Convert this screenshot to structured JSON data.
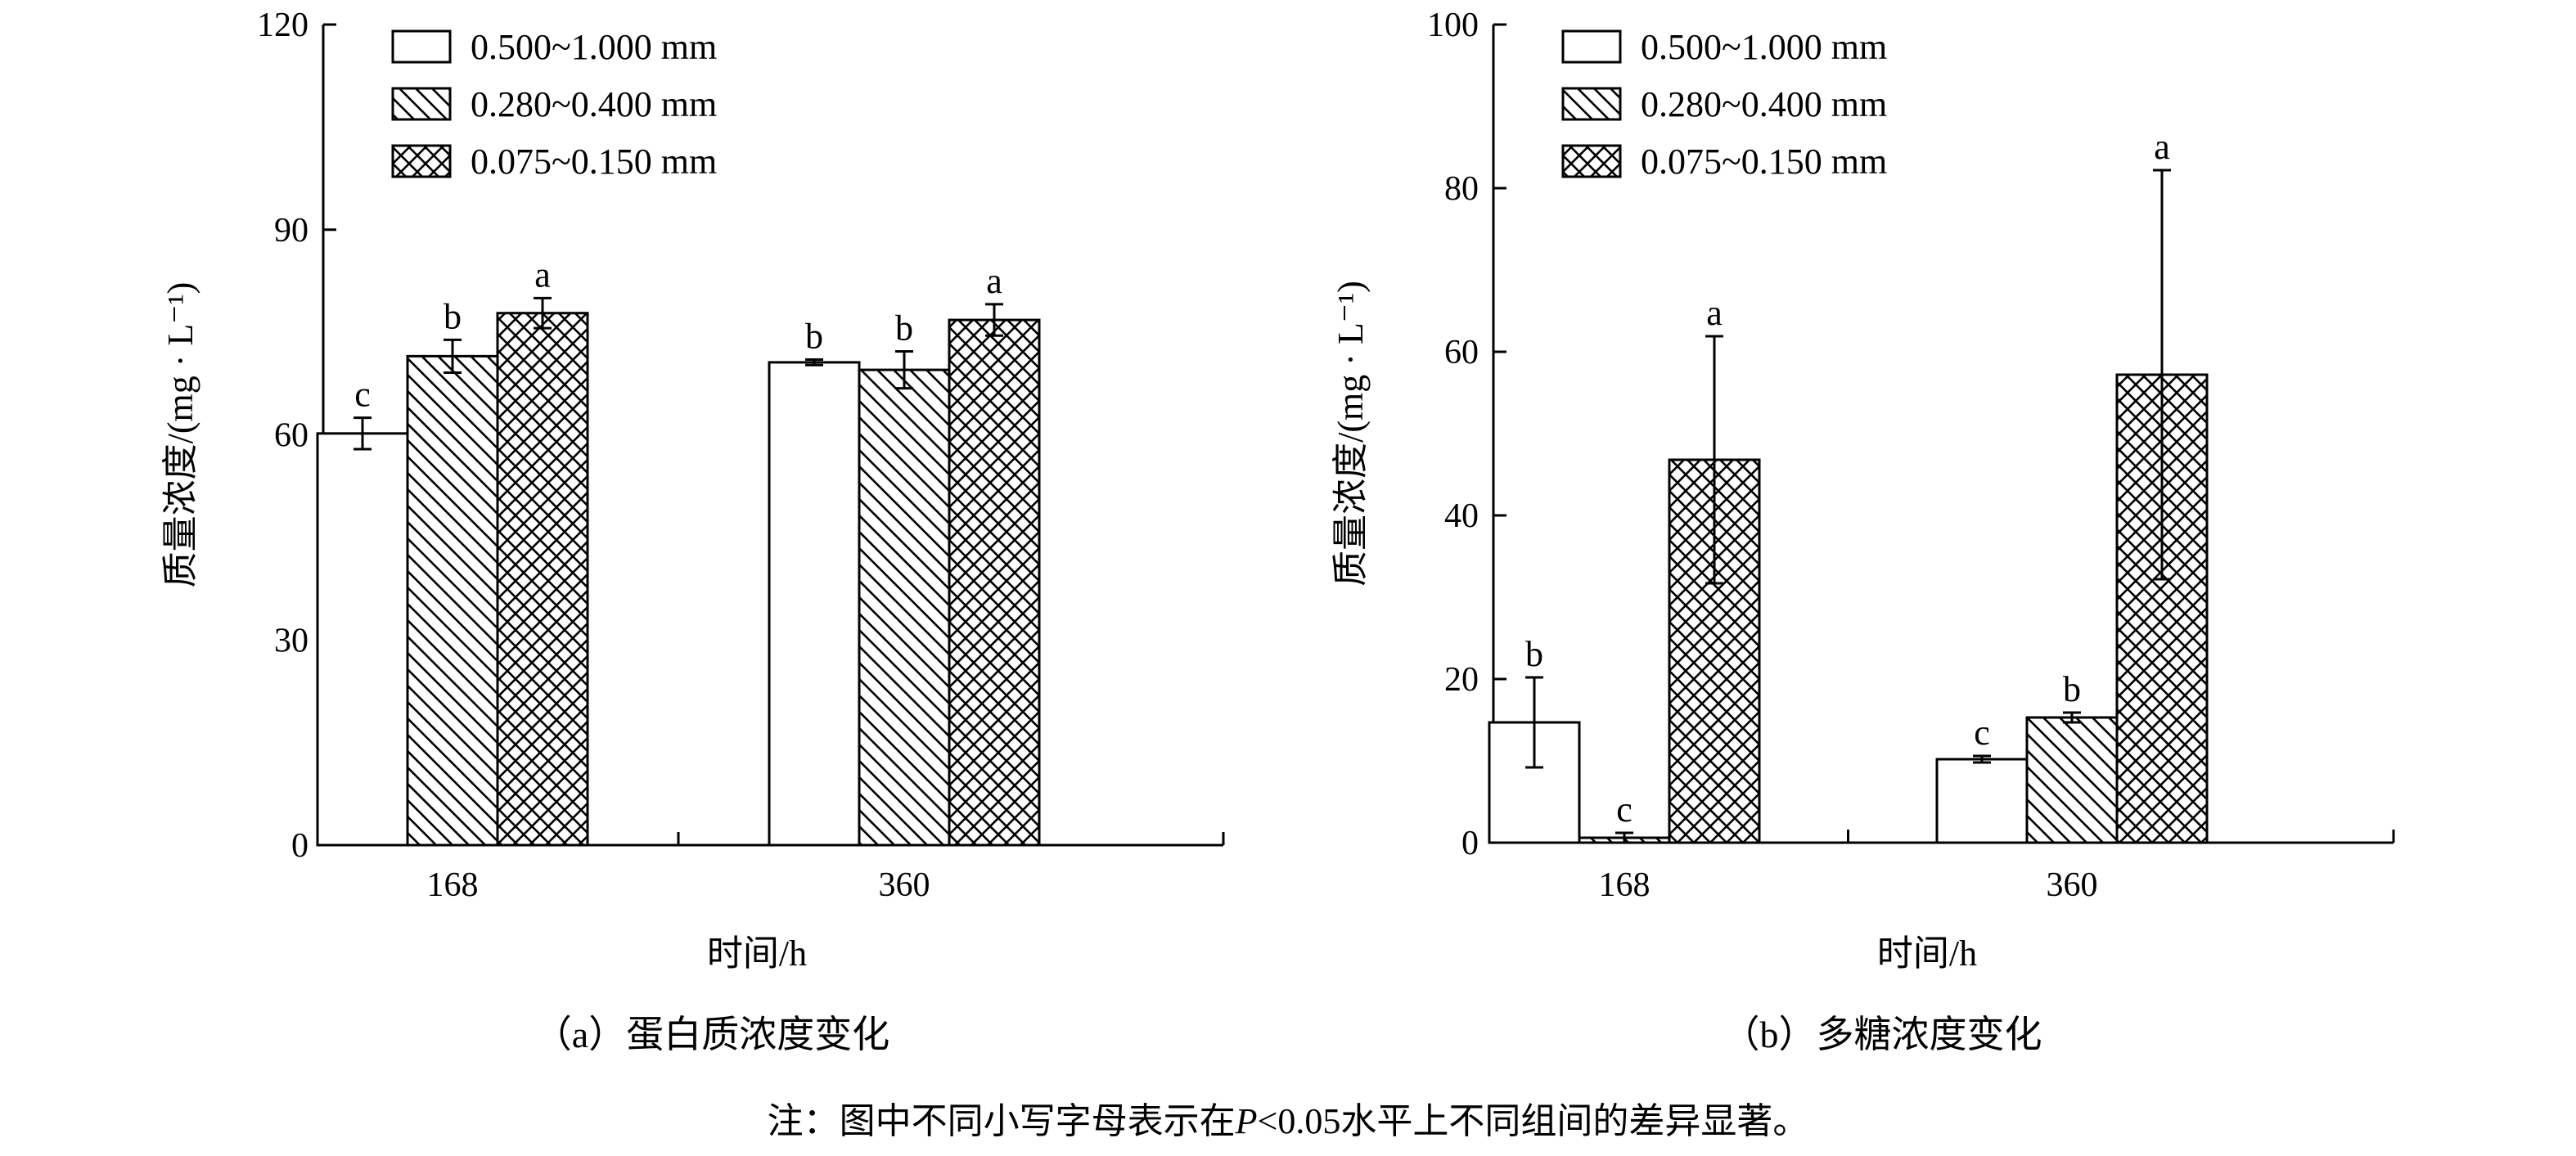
{
  "chart_data": [
    {
      "type": "bar",
      "panel": "a",
      "categories": [
        "168",
        "360"
      ],
      "xlabel": "时间/h",
      "ylabel": "质量浓度/(mg · L⁻¹)",
      "ylim": [
        0,
        120
      ],
      "yticks": [
        "0",
        "30",
        "60",
        "90",
        "120"
      ],
      "legend_position": "top-left",
      "series": [
        {
          "name": "0.500~1.000 mm",
          "pattern": "none",
          "values": [
            60.2,
            70.6
          ],
          "errors": [
            2.3,
            0.4
          ],
          "letters": [
            "c",
            "b"
          ]
        },
        {
          "name": "0.280~0.400 mm",
          "pattern": "diagonal-hatch",
          "values": [
            71.5,
            69.5
          ],
          "errors": [
            2.4,
            2.7
          ],
          "letters": [
            "b",
            "b"
          ]
        },
        {
          "name": "0.075~0.150 mm",
          "pattern": "crosshatch",
          "values": [
            77.8,
            76.8
          ],
          "errors": [
            2.2,
            2.3
          ],
          "letters": [
            "a",
            "a"
          ]
        }
      ],
      "caption": "（a）蛋白质浓度变化"
    },
    {
      "type": "bar",
      "panel": "b",
      "categories": [
        "168",
        "360"
      ],
      "xlabel": "时间/h",
      "ylabel": "质量浓度/(mg · L⁻¹)",
      "ylim": [
        0,
        100
      ],
      "yticks": [
        "0",
        "20",
        "40",
        "60",
        "80",
        "100"
      ],
      "legend_position": "top-left",
      "series": [
        {
          "name": "0.500~1.000 mm",
          "pattern": "none",
          "values": [
            14.7,
            10.2
          ],
          "errors": [
            5.5,
            0.4
          ],
          "letters": [
            "b",
            "c"
          ]
        },
        {
          "name": "0.280~0.400 mm",
          "pattern": "diagonal-hatch",
          "values": [
            0.6,
            15.3
          ],
          "errors": [
            0.6,
            0.6
          ],
          "letters": [
            "c",
            "b"
          ]
        },
        {
          "name": "0.075~0.150 mm",
          "pattern": "crosshatch",
          "values": [
            46.8,
            57.2
          ],
          "errors": [
            15.1,
            25.0
          ],
          "letters": [
            "a",
            "a"
          ]
        }
      ],
      "caption": "（b）多糖浓度变化"
    }
  ],
  "note": {
    "prefix": "注：图中不同小写字母表示在",
    "p": "P",
    "suffix": "<0.05水平上不同组间的差异显著。"
  }
}
